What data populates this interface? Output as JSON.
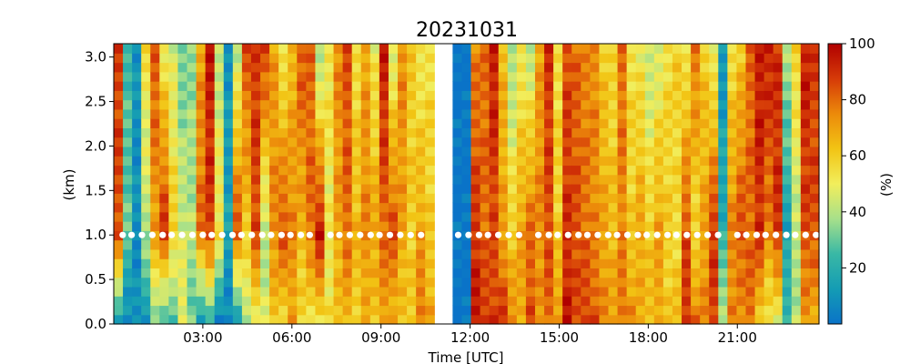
{
  "chart_data": {
    "type": "heatmap",
    "title": "20231031",
    "xlabel": "Time [UTC]",
    "ylabel": "(km)",
    "colorbar_label": "(%)",
    "x_unit": "hours UTC",
    "xlim": [
      0,
      23.75
    ],
    "ylim": [
      0,
      3.15
    ],
    "x_ticks": [
      3,
      6,
      9,
      12,
      15,
      18,
      21
    ],
    "x_tick_labels": [
      "03:00",
      "06:00",
      "09:00",
      "12:00",
      "15:00",
      "18:00",
      "21:00"
    ],
    "y_ticks": [
      0,
      0.5,
      1,
      1.5,
      2,
      2.5,
      3
    ],
    "y_tick_labels": [
      "0.0",
      "0.5",
      "1.0",
      "1.5",
      "2.0",
      "2.5",
      "3.0"
    ],
    "colorbar_range": [
      0,
      100
    ],
    "colorbar_ticks": [
      20,
      40,
      60,
      80,
      100
    ],
    "colormap": [
      "#0a73c8",
      "#149cb4",
      "#39b8a5",
      "#a7e08a",
      "#f2ee5c",
      "#f2c414",
      "#ec8a0a",
      "#d63a08",
      "#b00000"
    ],
    "grid": false,
    "data_gap_hours": [
      10.75,
      11.35
    ],
    "marker_height_km": 1.0,
    "marker_color": "#ffffff",
    "marker_times_hours": [
      0.3,
      0.6,
      0.95,
      1.3,
      1.65,
      1.95,
      2.3,
      2.65,
      3.0,
      3.3,
      3.65,
      4.0,
      4.3,
      4.65,
      5.0,
      5.3,
      5.65,
      5.95,
      6.3,
      6.6,
      7.3,
      7.6,
      7.95,
      8.3,
      8.65,
      8.95,
      9.3,
      9.65,
      10.0,
      10.35,
      11.6,
      11.95,
      12.3,
      12.6,
      12.95,
      13.3,
      13.65,
      14.3,
      14.65,
      14.95,
      15.3,
      15.65,
      15.95,
      16.3,
      16.65,
      16.95,
      17.3,
      17.65,
      17.95,
      18.3,
      18.65,
      18.95,
      19.3,
      19.65,
      20.0,
      20.35,
      21.0,
      21.3,
      21.65,
      21.95,
      22.3,
      22.65,
      22.95,
      23.3,
      23.65
    ],
    "top_column_values": [
      88,
      25,
      10,
      55,
      85,
      50,
      45,
      30,
      35,
      70,
      95,
      40,
      10,
      40,
      85,
      90,
      90,
      70,
      50,
      65,
      85,
      80,
      35,
      55,
      75,
      85,
      55,
      70,
      50,
      95,
      45,
      75,
      60,
      50,
      55,
      45,
      50,
      0,
      0,
      75,
      80,
      95,
      65,
      35,
      50,
      40,
      70,
      90,
      55,
      85,
      80,
      75,
      75,
      60,
      55,
      80,
      55,
      50,
      40,
      45,
      55,
      60,
      50,
      80,
      60,
      45,
      10,
      55,
      60,
      80,
      95,
      95,
      90,
      40,
      60,
      95,
      88
    ],
    "mid_column_values": [
      85,
      30,
      8,
      40,
      70,
      90,
      60,
      45,
      40,
      80,
      88,
      55,
      15,
      85,
      60,
      85,
      40,
      75,
      85,
      75,
      65,
      80,
      95,
      50,
      70,
      80,
      65,
      75,
      70,
      80,
      85,
      70,
      60,
      70,
      60,
      55,
      60,
      0,
      0,
      90,
      80,
      85,
      70,
      60,
      70,
      80,
      75,
      85,
      60,
      90,
      85,
      80,
      75,
      70,
      65,
      75,
      60,
      70,
      60,
      70,
      60,
      55,
      85,
      55,
      70,
      90,
      20,
      75,
      85,
      80,
      90,
      75,
      90,
      15,
      40,
      85,
      85
    ],
    "bottom_column_values": [
      15,
      5,
      8,
      10,
      35,
      20,
      25,
      50,
      30,
      10,
      20,
      5,
      5,
      8,
      40,
      50,
      45,
      60,
      55,
      70,
      55,
      50,
      55,
      55,
      60,
      65,
      60,
      65,
      60,
      70,
      65,
      60,
      60,
      80,
      70,
      75,
      70,
      0,
      0,
      95,
      90,
      88,
      90,
      75,
      70,
      85,
      70,
      80,
      75,
      95,
      85,
      88,
      85,
      75,
      70,
      80,
      75,
      65,
      65,
      70,
      60,
      65,
      90,
      80,
      75,
      85,
      45,
      75,
      70,
      80,
      60,
      50,
      45,
      25,
      40,
      70,
      65
    ]
  }
}
